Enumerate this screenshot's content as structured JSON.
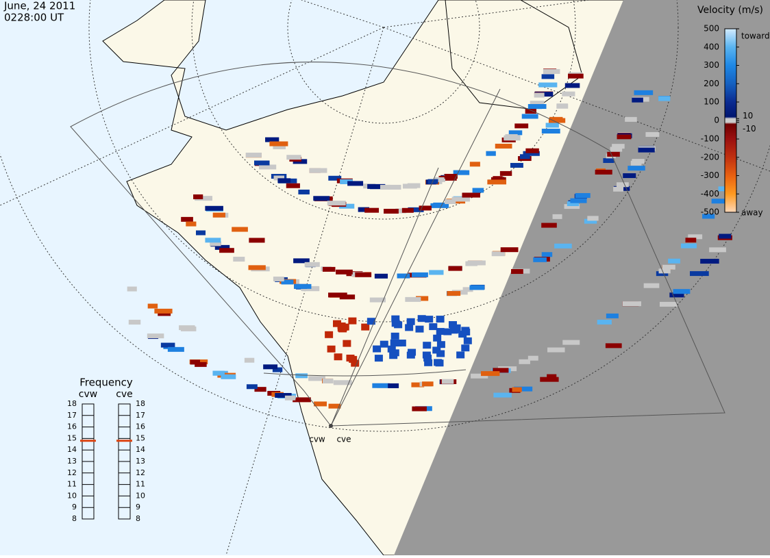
{
  "header": {
    "date": "June, 24 2011",
    "time": "0228:00 UT"
  },
  "velocity_scale": {
    "title": "Velocity (m/s)",
    "range": [
      -500,
      500
    ],
    "ticks": [
      500,
      400,
      300,
      200,
      100,
      10,
      0,
      -10,
      -100,
      -200,
      -300,
      -400,
      -500
    ],
    "toward_label": "toward",
    "away_label": "away"
  },
  "frequency": {
    "title": "Frequency",
    "ylim": [
      8,
      18
    ],
    "ticks": [
      8,
      9,
      10,
      11,
      12,
      13,
      14,
      15,
      16,
      17,
      18
    ],
    "radars": [
      {
        "name": "cvw",
        "value": 14.8,
        "color": "#dd4411"
      },
      {
        "name": "cve",
        "value": 14.8,
        "color": "#dd4411"
      }
    ]
  },
  "map": {
    "sites": [
      "cvw",
      "cve"
    ]
  }
}
